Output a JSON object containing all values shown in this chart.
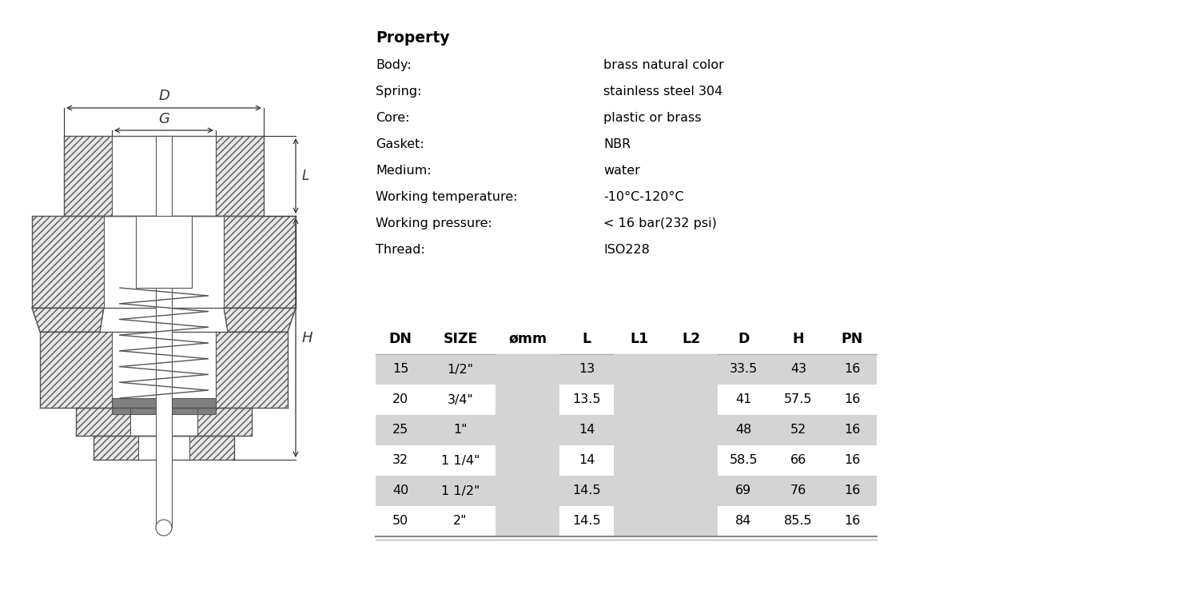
{
  "title": "Property",
  "properties": [
    [
      "Body：",
      "brass natural color"
    ],
    [
      "Spring：",
      "stainless steel 304"
    ],
    [
      "Core：",
      "plastic or brass"
    ],
    [
      "Gasket：",
      "NBR"
    ],
    [
      "Medium：",
      "water"
    ],
    [
      "Working temperature：",
      "-10°C-120°C"
    ],
    [
      "Working pressure：",
      "< 16 bar(232 psi)"
    ],
    [
      "Thread：",
      "ISO228"
    ]
  ],
  "table_headers": [
    "DN",
    "SIZE",
    "ømm",
    "L",
    "L1",
    "L2",
    "D",
    "H",
    "PN"
  ],
  "table_data": [
    [
      "15",
      "1/2\"",
      "",
      "13",
      "",
      "",
      "33.5",
      "43",
      "16"
    ],
    [
      "20",
      "3/4\"",
      "",
      "13.5",
      "",
      "",
      "41",
      "57.5",
      "16"
    ],
    [
      "25",
      "1\"",
      "",
      "14",
      "",
      "",
      "48",
      "52",
      "16"
    ],
    [
      "32",
      "1 1/4\"",
      "",
      "14",
      "",
      "",
      "58.5",
      "66",
      "16"
    ],
    [
      "40",
      "1 1/2\"",
      "",
      "14.5",
      "",
      "",
      "69",
      "76",
      "16"
    ],
    [
      "50",
      "2\"",
      "",
      "14.5",
      "",
      "",
      "84",
      "85.5",
      "16"
    ]
  ],
  "shaded_rows": [
    0,
    2,
    4
  ],
  "shaded_cols": [
    2,
    4,
    5
  ],
  "row_bg_color": "#d4d4d4",
  "bg_color": "#ffffff",
  "text_color": "#000000"
}
